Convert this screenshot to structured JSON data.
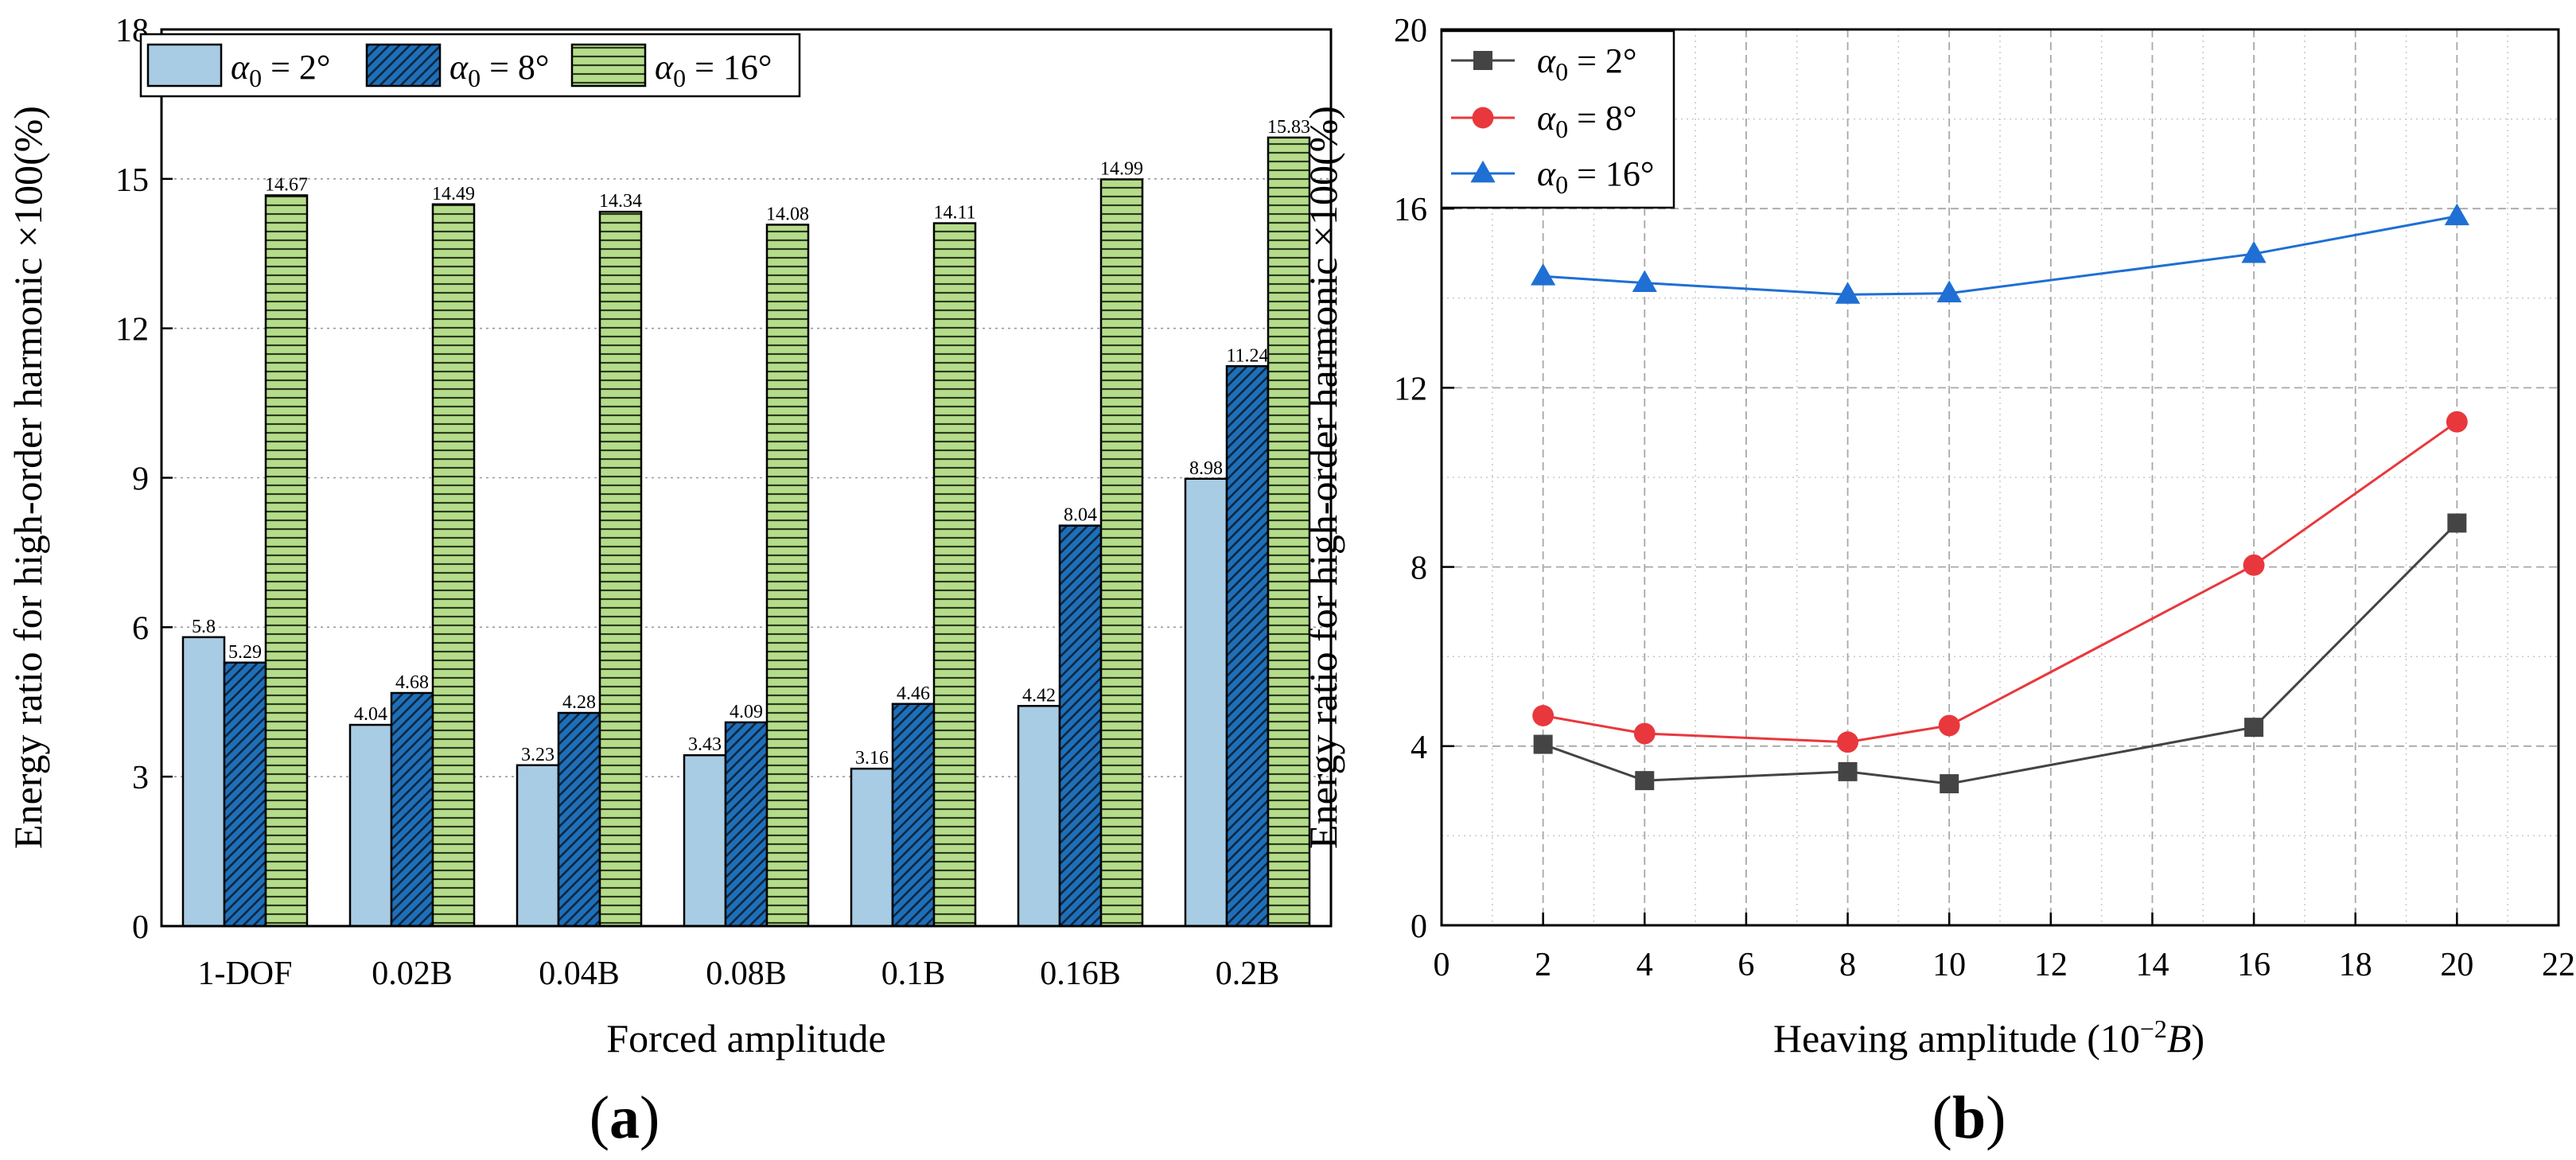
{
  "chart_data": [
    {
      "panel_label": "(a)",
      "type": "bar",
      "xlabel": "Forced amplitude",
      "ylabel": "Energy ratio for high-order harmonic ×100(%)",
      "ylim": [
        0,
        18
      ],
      "yticks": [
        "0",
        "3",
        "6",
        "9",
        "12",
        "15",
        "18"
      ],
      "grid": true,
      "legend_position": "top-left",
      "categories": [
        "1-DOF",
        "0.02B",
        "0.04B",
        "0.08B",
        "0.1B",
        "0.16B",
        "0.2B"
      ],
      "series": [
        {
          "name": "α0 = 2°",
          "legend": {
            "symbol": "α",
            "sub": "0",
            "rest": " = 2°"
          },
          "fill": "#a8cce4",
          "pattern": "none",
          "values": [
            5.8,
            4.04,
            3.23,
            3.43,
            3.16,
            4.42,
            8.98
          ],
          "labels": [
            "5.8",
            "4.04",
            "3.23",
            "3.43",
            "3.16",
            "4.42",
            "8.98"
          ]
        },
        {
          "name": "α0 = 8°",
          "legend": {
            "symbol": "α",
            "sub": "0",
            "rest": " = 8°"
          },
          "fill": "#1f6fb8",
          "pattern": "diagonal",
          "values": [
            5.29,
            4.68,
            4.28,
            4.09,
            4.46,
            8.04,
            11.24
          ],
          "labels": [
            "5.29",
            "4.68",
            "4.28",
            "4.09",
            "4.46",
            "8.04",
            "11.24"
          ]
        },
        {
          "name": "α0 = 16°",
          "legend": {
            "symbol": "α",
            "sub": "0",
            "rest": " = 16°"
          },
          "fill": "#b5dc8a",
          "pattern": "horizontal",
          "values": [
            14.67,
            14.49,
            14.34,
            14.08,
            14.11,
            14.99,
            15.83
          ],
          "labels": [
            "14.67",
            "14.49",
            "14.34",
            "14.08",
            "14.11",
            "14.99",
            "15.83"
          ]
        }
      ]
    },
    {
      "panel_label": "(b)",
      "type": "line",
      "xlabel": {
        "main": "Heaving amplitude (10",
        "sup": "−2",
        "var": "B",
        "close": ")"
      },
      "ylabel": "Energy ratio for high-order harmonic ×100(%)",
      "xlim": [
        0,
        22
      ],
      "ylim": [
        0,
        20
      ],
      "xticks": [
        "0",
        "2",
        "4",
        "6",
        "8",
        "10",
        "12",
        "14",
        "16",
        "18",
        "20",
        "22"
      ],
      "yticks": [
        "0",
        "4",
        "8",
        "12",
        "16",
        "20"
      ],
      "grid": true,
      "legend_position": "top-left",
      "x": [
        2,
        4,
        8,
        10,
        16,
        20
      ],
      "series": [
        {
          "name": "α0 = 2°",
          "legend": {
            "symbol": "α",
            "sub": "0",
            "rest": " = 2°"
          },
          "color": "#444444",
          "marker": "square",
          "values": [
            4.04,
            3.23,
            3.43,
            3.16,
            4.42,
            8.98
          ]
        },
        {
          "name": "α0 = 8°",
          "legend": {
            "symbol": "α",
            "sub": "0",
            "rest": " = 8°"
          },
          "color": "#e8383d",
          "marker": "circle",
          "values": [
            4.68,
            4.28,
            4.09,
            4.46,
            8.04,
            11.24
          ]
        },
        {
          "name": "α0 = 16°",
          "legend": {
            "symbol": "α",
            "sub": "0",
            "rest": " = 16°"
          },
          "color": "#1f6fd4",
          "marker": "triangle",
          "values": [
            14.49,
            14.34,
            14.08,
            14.11,
            14.99,
            15.83
          ]
        }
      ]
    }
  ]
}
